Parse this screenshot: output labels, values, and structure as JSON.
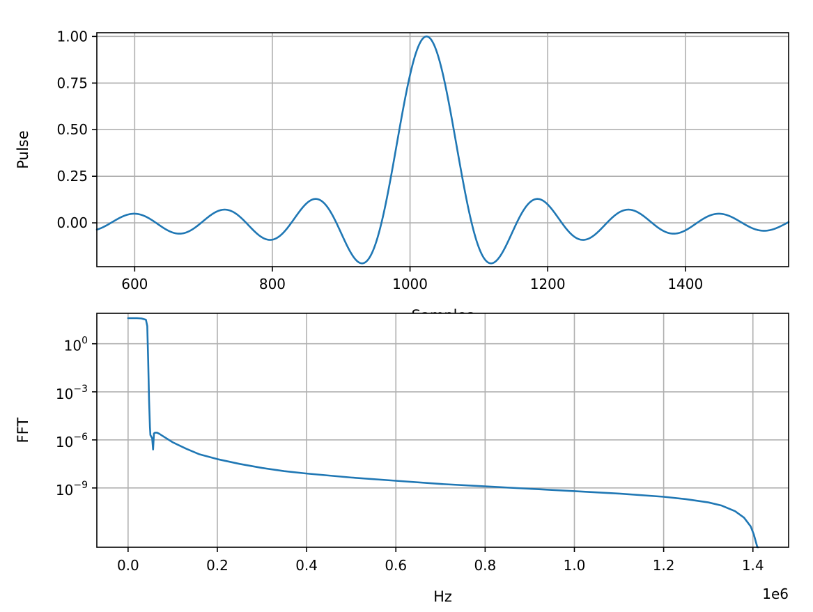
{
  "chart_data": [
    {
      "type": "line",
      "title": "",
      "xlabel": "Samples",
      "ylabel": "Pulse",
      "xlim": [
        545,
        1550
      ],
      "ylim": [
        -0.235,
        1.02
      ],
      "xticks": [
        600,
        800,
        1000,
        1200,
        1400
      ],
      "xtick_labels": [
        "600",
        "800",
        "1000",
        "1200",
        "1400"
      ],
      "yticks": [
        0.0,
        0.25,
        0.5,
        0.75,
        1.0
      ],
      "ytick_labels": [
        "0.00",
        "0.25",
        "0.50",
        "0.75",
        "1.00"
      ],
      "grid": true,
      "series": [
        {
          "name": "",
          "color": "#1f77b4",
          "form": "sinc",
          "center": 1024,
          "zero_spacing": 65.5,
          "x": [
            545,
            1550
          ]
        }
      ]
    },
    {
      "type": "line",
      "title": "",
      "xlabel": "Hz",
      "ylabel": "FFT",
      "x_offset_label": "1e6",
      "xlim": [
        -0.07,
        1.48
      ],
      "ylim_log10": [
        -12.7,
        1.9
      ],
      "yscale": "log",
      "xticks": [
        0.0,
        0.2,
        0.4,
        0.6,
        0.8,
        1.0,
        1.2,
        1.4
      ],
      "xtick_labels": [
        "0.0",
        "0.2",
        "0.4",
        "0.6",
        "0.8",
        "1.0",
        "1.2",
        "1.4"
      ],
      "yticks_log10": [
        0,
        -3,
        -6,
        -9
      ],
      "ytick_bases": [
        "10",
        "10",
        "10",
        "10"
      ],
      "ytick_exponents": [
        "0",
        "−3",
        "−6",
        "−9"
      ],
      "grid": true,
      "series": [
        {
          "name": "",
          "color": "#1f77b4",
          "x": [
            0.0,
            0.01,
            0.02,
            0.03,
            0.04,
            0.043,
            0.045,
            0.047,
            0.049,
            0.05,
            0.052,
            0.054,
            0.056,
            0.058,
            0.06,
            0.065,
            0.07,
            0.08,
            0.1,
            0.13,
            0.16,
            0.2,
            0.25,
            0.3,
            0.35,
            0.4,
            0.5,
            0.6,
            0.7,
            0.8,
            0.9,
            1.0,
            1.1,
            1.2,
            1.25,
            1.3,
            1.33,
            1.36,
            1.38,
            1.395,
            1.402,
            1.407,
            1.41,
            1.412
          ],
          "log10_y": [
            1.6,
            1.6,
            1.6,
            1.58,
            1.5,
            1.1,
            -1.0,
            -3.5,
            -5.2,
            -5.7,
            -5.8,
            -5.9,
            -6.6,
            -5.6,
            -5.55,
            -5.55,
            -5.62,
            -5.8,
            -6.15,
            -6.55,
            -6.9,
            -7.2,
            -7.5,
            -7.75,
            -7.95,
            -8.1,
            -8.35,
            -8.55,
            -8.75,
            -8.9,
            -9.05,
            -9.2,
            -9.35,
            -9.55,
            -9.7,
            -9.9,
            -10.1,
            -10.45,
            -10.85,
            -11.4,
            -11.9,
            -12.4,
            -12.7,
            -12.7
          ]
        }
      ]
    }
  ]
}
